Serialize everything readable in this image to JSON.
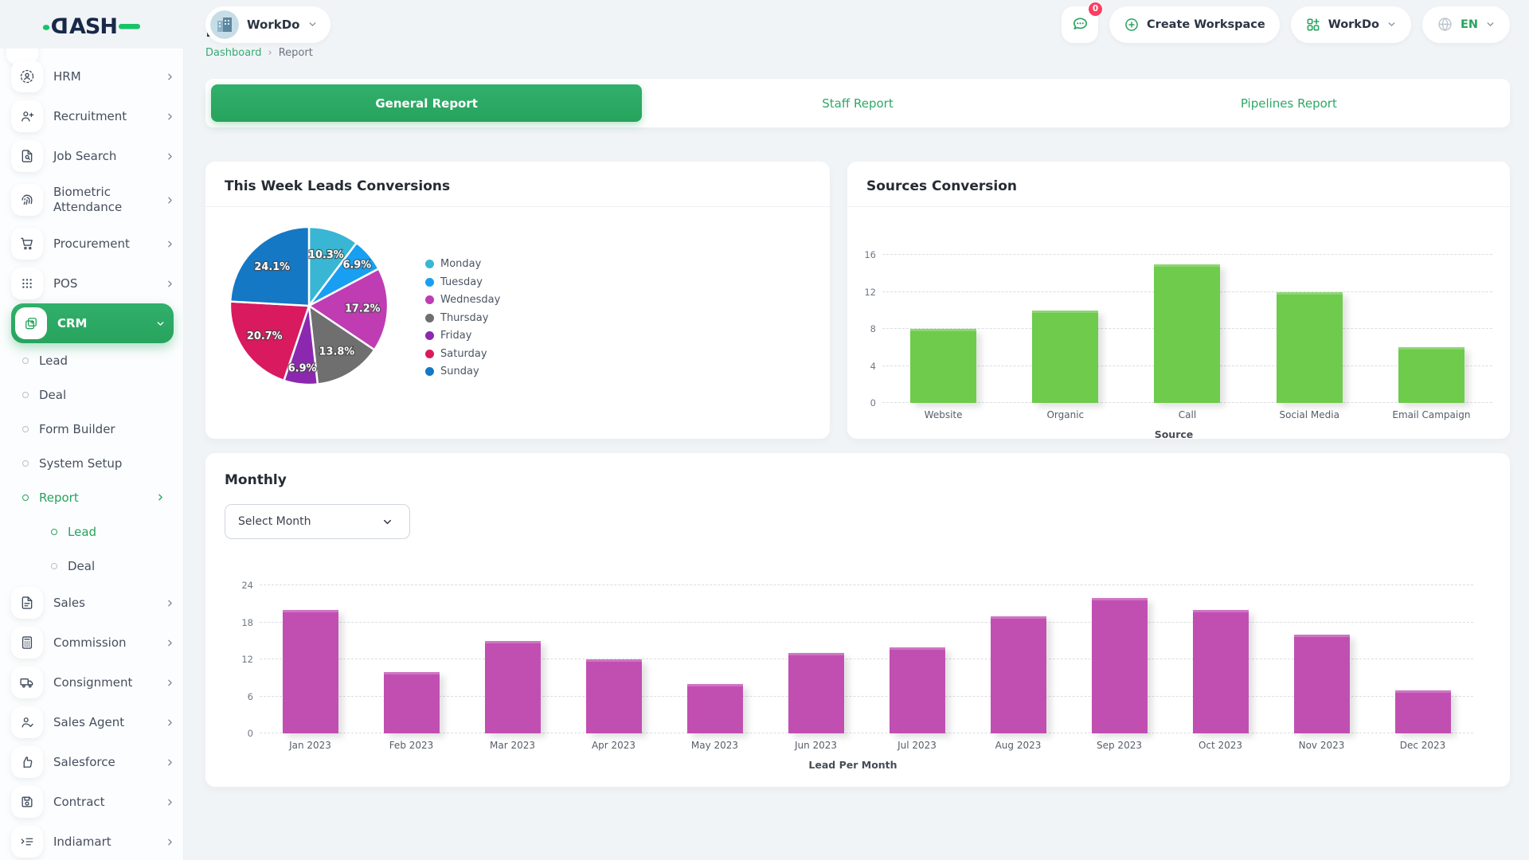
{
  "app": {
    "logo_text": "DASH"
  },
  "colors": {
    "accent_green": "#27a35d",
    "accent_green_light": "#31b06c",
    "badge_red": "#fb3e63",
    "bar_green": "#6ecb4b",
    "bar_magenta": "#c14fb2",
    "breadcrumb_link_green": "#35aa72"
  },
  "header": {
    "workspace_name": "WorkDo",
    "messages_badge": "0",
    "create_workspace_label": "Create Workspace",
    "workdo_menu_label": "WorkDo",
    "language": "EN"
  },
  "sidebar": {
    "items": [
      {
        "label": "HRM",
        "icon": "hrm",
        "chevron": "right"
      },
      {
        "label": "Recruitment",
        "icon": "recruitment",
        "chevron": "right"
      },
      {
        "label": "Job Search",
        "icon": "job-search",
        "chevron": "right"
      },
      {
        "label": "Biometric Attendance",
        "icon": "biometric",
        "chevron": "right",
        "tall": true
      },
      {
        "label": "Procurement",
        "icon": "procurement",
        "chevron": "right"
      },
      {
        "label": "POS",
        "icon": "pos",
        "chevron": "right"
      },
      {
        "label": "CRM",
        "icon": "crm",
        "chevron": "down",
        "active": true
      },
      {
        "label": "Lead",
        "type": "child"
      },
      {
        "label": "Deal",
        "type": "child"
      },
      {
        "label": "Form Builder",
        "type": "child"
      },
      {
        "label": "System Setup",
        "type": "child"
      },
      {
        "label": "Report",
        "type": "child",
        "active": true,
        "chevron": "right"
      },
      {
        "label": "Lead",
        "type": "grandchild",
        "active": true
      },
      {
        "label": "Deal",
        "type": "grandchild"
      },
      {
        "label": "Sales",
        "icon": "sales",
        "chevron": "right"
      },
      {
        "label": "Commission",
        "icon": "commission",
        "chevron": "right"
      },
      {
        "label": "Consignment",
        "icon": "consignment",
        "chevron": "right"
      },
      {
        "label": "Sales Agent",
        "icon": "sales-agent",
        "chevron": "right"
      },
      {
        "label": "Salesforce",
        "icon": "salesforce",
        "chevron": "right"
      },
      {
        "label": "Contract",
        "icon": "contract",
        "chevron": "right"
      },
      {
        "label": "Indiamart",
        "icon": "indiamart",
        "chevron": "right"
      }
    ]
  },
  "page": {
    "title": "Report",
    "breadcrumb": [
      "Dashboard",
      "Report"
    ],
    "breadcrumb_separator": "›"
  },
  "tabs": [
    {
      "label": "General Report",
      "active": true
    },
    {
      "label": "Staff Report",
      "active": false
    },
    {
      "label": "Pipelines Report",
      "active": false
    }
  ],
  "monthly": {
    "select_placeholder": "Select Month"
  },
  "chart_data": [
    {
      "id": "weekly_leads_pie",
      "type": "pie",
      "title": "This Week Leads Conversions",
      "labels": [
        "Monday",
        "Tuesday",
        "Wednesday",
        "Thursday",
        "Friday",
        "Saturday",
        "Sunday"
      ],
      "values": [
        10.3,
        6.9,
        17.2,
        13.8,
        6.9,
        20.7,
        24.1
      ],
      "value_format": "percent",
      "colors": [
        "#38b6d4",
        "#189ff1",
        "#bf3cb3",
        "#6f6f6f",
        "#8c28b0",
        "#d91a5f",
        "#1478c5"
      ],
      "legend_position": "right"
    },
    {
      "id": "sources_conversion_bar",
      "type": "bar",
      "title": "Sources Conversion",
      "categories": [
        "Website",
        "Organic",
        "Call",
        "Social Media",
        "Email Campaign"
      ],
      "values": [
        8,
        10,
        15,
        12,
        6
      ],
      "xlabel": "Source",
      "ylabel": "",
      "ylim": [
        0,
        16
      ],
      "yticks": [
        0,
        4,
        8,
        12,
        16
      ],
      "bar_color": "#6ecb4b",
      "grid": "dashed-horizontal"
    },
    {
      "id": "monthly_leads_bar",
      "type": "bar",
      "title": "Monthly",
      "categories": [
        "Jan 2023",
        "Feb 2023",
        "Mar 2023",
        "Apr 2023",
        "May 2023",
        "Jun 2023",
        "Jul 2023",
        "Aug 2023",
        "Sep 2023",
        "Oct 2023",
        "Nov 2023",
        "Dec 2023"
      ],
      "values": [
        20,
        10,
        15,
        12,
        8,
        13,
        14,
        19,
        22,
        20,
        16,
        7
      ],
      "xlabel": "Lead Per Month",
      "ylabel": "",
      "ylim": [
        0,
        24
      ],
      "yticks": [
        0,
        6,
        12,
        18,
        24
      ],
      "bar_color": "#c14fb2",
      "grid": "dashed-horizontal"
    }
  ]
}
